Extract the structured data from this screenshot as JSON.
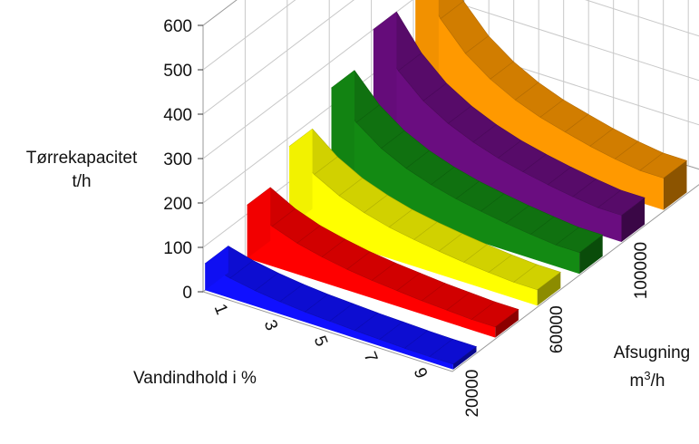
{
  "chart_data": {
    "type": "3d-ribbon",
    "ylabel_line1": "Tørrekapacitet",
    "ylabel_line2": "t/h",
    "xlabel": "Vandindhold i %",
    "zlabel_line1": "Afsugning",
    "zlabel_line2_base": "m",
    "zlabel_line2_sup": "3",
    "zlabel_line2_tail": "/h",
    "ylim": [
      0,
      600
    ],
    "y_ticks": [
      "0",
      "100",
      "200",
      "300",
      "400",
      "500",
      "600"
    ],
    "x_ticks": [
      "1",
      "3",
      "5",
      "7",
      "9"
    ],
    "z_ticks": [
      "20000",
      "60000",
      "100000"
    ],
    "x": [
      1,
      2,
      3,
      4,
      5,
      6,
      7,
      8,
      9,
      10
    ],
    "series": [
      {
        "afsugning": 20000,
        "color": "#1010ff",
        "values": [
          60,
          45,
          35,
          28,
          23,
          20,
          17,
          15,
          13,
          12
        ]
      },
      {
        "afsugning": 40000,
        "color": "#ff0000",
        "values": [
          120,
          90,
          70,
          57,
          47,
          40,
          35,
          30,
          27,
          24
        ]
      },
      {
        "afsugning": 60000,
        "color": "#ffff00",
        "values": [
          180,
          135,
          105,
          85,
          70,
          60,
          52,
          45,
          40,
          36
        ]
      },
      {
        "afsugning": 80000,
        "color": "#138a13",
        "values": [
          240,
          180,
          140,
          113,
          94,
          80,
          70,
          61,
          54,
          48
        ]
      },
      {
        "afsugning": 100000,
        "color": "#6a0d80",
        "values": [
          300,
          225,
          175,
          142,
          118,
          100,
          87,
          76,
          67,
          60
        ]
      },
      {
        "afsugning": 120000,
        "color": "#ff9900",
        "values": [
          360,
          270,
          210,
          170,
          141,
          120,
          105,
          91,
          80,
          72
        ]
      }
    ],
    "grid": true
  }
}
